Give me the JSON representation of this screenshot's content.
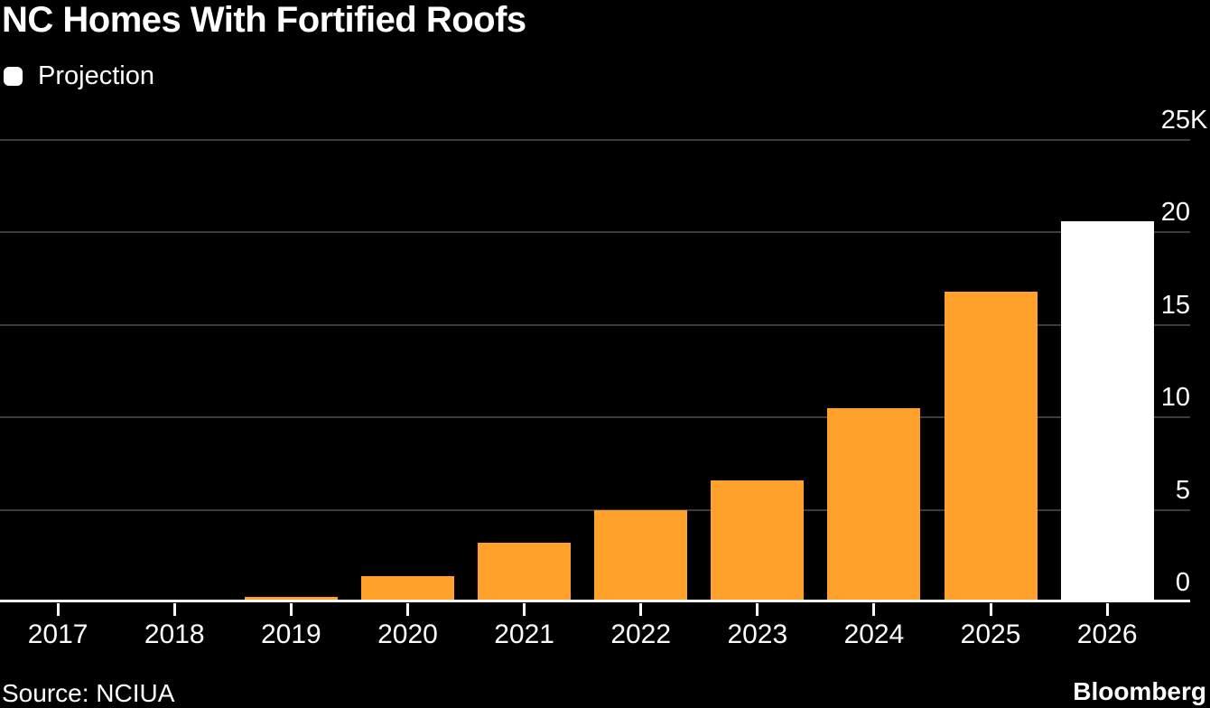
{
  "title": "NC Homes With Fortified Roofs",
  "legend": {
    "items": [
      {
        "label": "Projection",
        "color": "#ffffff"
      }
    ]
  },
  "footer": {
    "source": "Source: NCIUA",
    "brand": "Bloomberg"
  },
  "colors": {
    "background": "#000000",
    "bar": "#ffa12b",
    "projection_bar": "#ffffff",
    "gridline": "#3c3c3c",
    "baseline": "#ffffff",
    "text": "#ffffff"
  },
  "chart_data": {
    "type": "bar",
    "title": "NC Homes With Fortified Roofs",
    "categories": [
      "2017",
      "2018",
      "2019",
      "2020",
      "2021",
      "2022",
      "2023",
      "2024",
      "2025",
      "2026"
    ],
    "values": [
      0.05,
      0.15,
      0.3,
      1.4,
      3.2,
      5.0,
      6.6,
      10.5,
      16.8,
      20.6
    ],
    "value_unit": "thousands of homes",
    "is_projection": [
      false,
      false,
      false,
      false,
      false,
      false,
      false,
      false,
      false,
      true
    ],
    "legend": [
      "Projection"
    ],
    "ylabel": "",
    "xlabel": "",
    "ylim": [
      0,
      25
    ],
    "y_ticks": [
      0,
      5,
      10,
      15,
      20,
      25
    ],
    "y_tick_labels": [
      "0",
      "5",
      "10",
      "15",
      "20",
      "25K"
    ],
    "grid": "horizontal",
    "axis_side": "right",
    "source": "Source: NCIUA",
    "brand": "Bloomberg"
  }
}
